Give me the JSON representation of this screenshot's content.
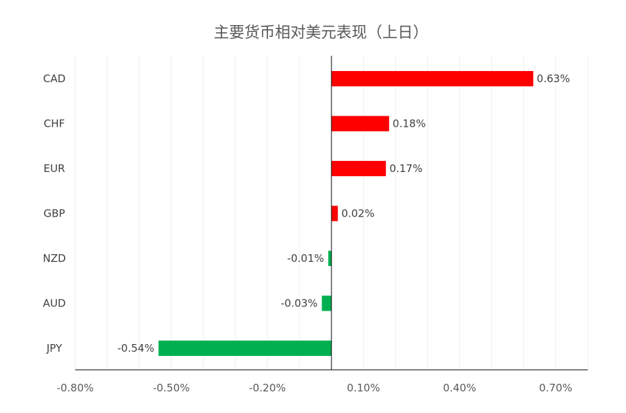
{
  "chart_data": {
    "type": "bar",
    "orientation": "horizontal",
    "title": "主要货币相对美元表现（上日）",
    "xlabel": "",
    "ylabel": "",
    "categories": [
      "CAD",
      "CHF",
      "EUR",
      "GBP",
      "NZD",
      "AUD",
      "JPY"
    ],
    "values": [
      0.63,
      0.18,
      0.17,
      0.02,
      -0.01,
      -0.03,
      -0.54
    ],
    "data_labels": [
      "0.63%",
      "0.18%",
      "0.17%",
      "0.02%",
      "-0.01%",
      "-0.03%",
      "-0.54%"
    ],
    "xlim": [
      -0.8,
      0.8
    ],
    "tick_values": [
      -0.8,
      -0.5,
      -0.2,
      0.1,
      0.4,
      0.7
    ],
    "tick_labels": [
      "-0.80%",
      "-0.50%",
      "-0.20%",
      "0.10%",
      "0.40%",
      "0.70%"
    ],
    "grid": true,
    "legend": "none",
    "colors": {
      "positive": "#ff0000",
      "negative": "#00b050",
      "axis": "#000000",
      "grid": "#ececec"
    }
  }
}
